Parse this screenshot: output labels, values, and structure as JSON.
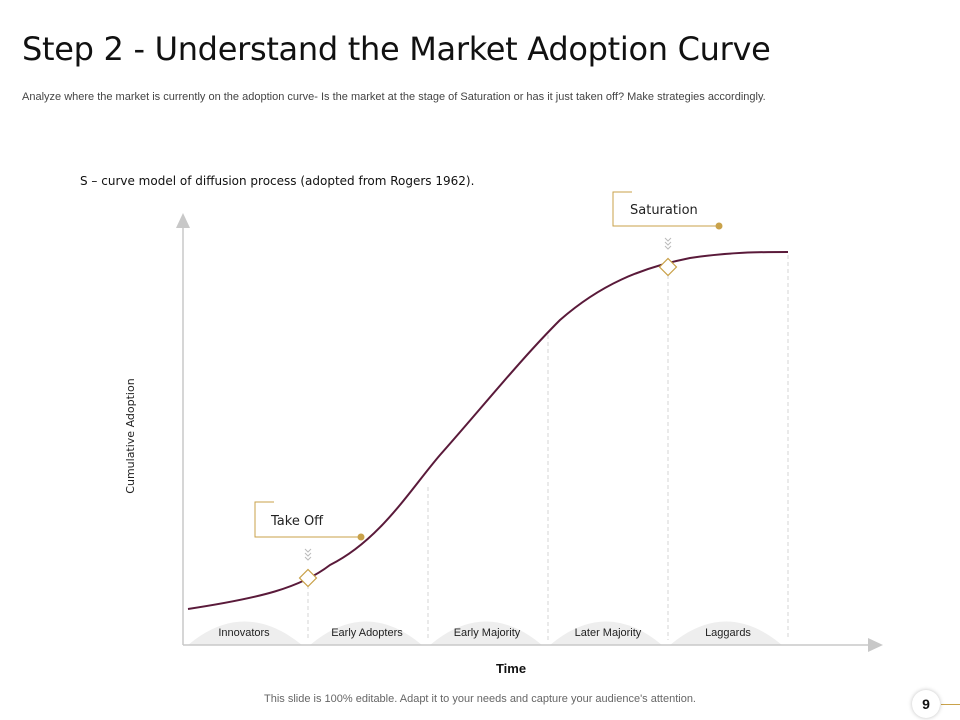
{
  "slide": {
    "title": "Step 2 - Understand the Market Adoption Curve",
    "subtitle": "Analyze  where the market is currently on the adoption curve- Is the market at the stage of Saturation or has it just taken off? Make strategies accordingly.",
    "footer": "This slide is 100% editable. Adapt it to your needs and capture your audience's attention.",
    "page_number": "9"
  },
  "diagram": {
    "caption": "S – curve model of diffusion process (adopted from Rogers 1962).",
    "y_axis_label": "Cumulative Adoption",
    "x_axis_label": "Time",
    "segments": [
      "Innovators",
      "Early Adopters",
      "Early Majority",
      "Later Majority",
      "Laggards"
    ],
    "callouts": {
      "take_off": "Take Off",
      "saturation": "Saturation"
    },
    "colors": {
      "curve": "#5a1a3a",
      "accent": "#c9a24a",
      "axis": "#c8c8c8",
      "segment_fill": "#eeeeee"
    }
  }
}
